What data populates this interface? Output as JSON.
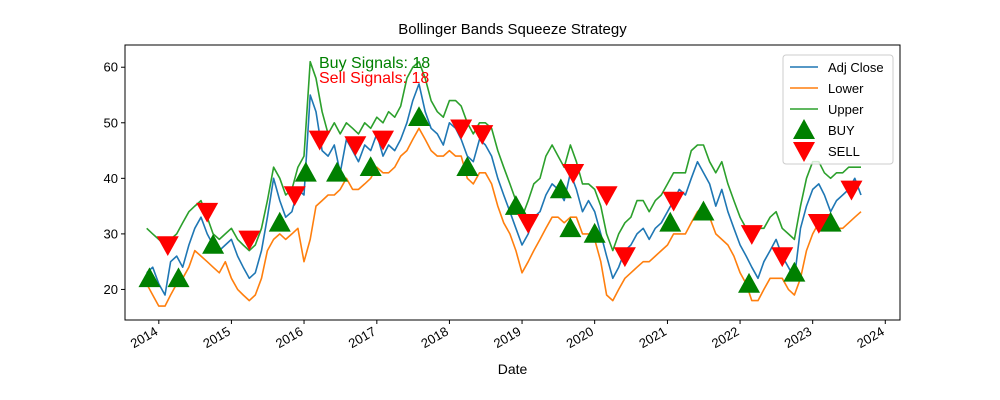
{
  "chart_data": {
    "type": "line",
    "title": "Bollinger Bands Squeeze Strategy",
    "xlabel": "Date",
    "ylabel": "",
    "xlim": [
      "2013-07-15",
      "2024-03-15"
    ],
    "ylim": [
      14.5,
      64
    ],
    "x_ticks": [
      "2014",
      "2015",
      "2016",
      "2017",
      "2018",
      "2019",
      "2020",
      "2021",
      "2022",
      "2023",
      "2024"
    ],
    "y_ticks": [
      20,
      30,
      40,
      50,
      60
    ],
    "grid": false,
    "legend_position": "top-right",
    "annotations": {
      "buy_text": "Buy Signals: 18",
      "sell_text": "Sell Signals: 18",
      "buy_color": "#008000",
      "sell_color": "#ff0000"
    },
    "colors": {
      "adj_close": "#1f77b4",
      "lower": "#ff7f0e",
      "upper": "#2ca02c",
      "buy": "#008000",
      "sell": "#ff0000"
    },
    "series": [
      {
        "name": "Adj Close",
        "x": [
          "2013-11-01",
          "2013-12-01",
          "2014-01-01",
          "2014-02-01",
          "2014-03-01",
          "2014-04-01",
          "2014-05-01",
          "2014-06-01",
          "2014-07-01",
          "2014-08-01",
          "2014-09-01",
          "2014-10-01",
          "2014-11-01",
          "2014-12-01",
          "2015-01-01",
          "2015-02-01",
          "2015-03-01",
          "2015-04-01",
          "2015-05-01",
          "2015-06-01",
          "2015-07-01",
          "2015-08-01",
          "2015-09-01",
          "2015-10-01",
          "2015-11-01",
          "2015-12-01",
          "2016-01-01",
          "2016-02-01",
          "2016-03-01",
          "2016-04-01",
          "2016-05-01",
          "2016-06-01",
          "2016-07-01",
          "2016-08-01",
          "2016-09-01",
          "2016-10-01",
          "2016-11-01",
          "2016-12-01",
          "2017-01-01",
          "2017-02-01",
          "2017-03-01",
          "2017-04-01",
          "2017-05-01",
          "2017-06-01",
          "2017-07-01",
          "2017-08-01",
          "2017-09-01",
          "2017-10-01",
          "2017-11-01",
          "2017-12-01",
          "2018-01-01",
          "2018-02-01",
          "2018-03-01",
          "2018-04-01",
          "2018-05-01",
          "2018-06-01",
          "2018-07-01",
          "2018-08-01",
          "2018-09-01",
          "2018-10-01",
          "2018-11-01",
          "2018-12-01",
          "2019-01-01",
          "2019-02-01",
          "2019-03-01",
          "2019-04-01",
          "2019-05-01",
          "2019-06-01",
          "2019-07-01",
          "2019-08-01",
          "2019-09-01",
          "2019-10-01",
          "2019-11-01",
          "2019-12-01",
          "2020-01-01",
          "2020-02-01",
          "2020-03-01",
          "2020-04-01",
          "2020-05-01",
          "2020-06-01",
          "2020-07-01",
          "2020-08-01",
          "2020-09-01",
          "2020-10-01",
          "2020-11-01",
          "2020-12-01",
          "2021-01-01",
          "2021-02-01",
          "2021-03-01",
          "2021-04-01",
          "2021-05-01",
          "2021-06-01",
          "2021-07-01",
          "2021-08-01",
          "2021-09-01",
          "2021-10-01",
          "2021-11-01",
          "2021-12-01",
          "2022-01-01",
          "2022-02-01",
          "2022-03-01",
          "2022-04-01",
          "2022-05-01",
          "2022-06-01",
          "2022-07-01",
          "2022-08-01",
          "2022-09-01",
          "2022-10-01",
          "2022-11-01",
          "2022-12-01",
          "2023-01-01",
          "2023-02-01",
          "2023-03-01",
          "2023-04-01",
          "2023-05-01",
          "2023-06-01",
          "2023-07-01",
          "2023-08-01",
          "2023-09-01"
        ],
        "values": [
          23,
          24,
          21,
          19,
          25,
          26,
          24,
          28,
          31,
          33,
          30,
          28,
          27,
          28,
          29,
          26,
          24,
          22,
          23,
          27,
          33,
          40,
          36,
          33,
          34,
          38,
          37,
          55,
          52,
          45,
          44,
          46,
          41,
          47,
          45,
          43,
          46,
          45,
          48,
          44,
          46,
          45,
          47,
          50,
          54,
          57,
          52,
          49,
          48,
          46,
          50,
          49,
          47,
          44,
          43,
          47,
          46,
          44,
          40,
          37,
          34,
          31,
          28,
          30,
          33,
          34,
          37,
          39,
          38,
          36,
          41,
          38,
          34,
          36,
          34,
          30,
          26,
          22,
          24,
          27,
          28,
          30,
          31,
          29,
          31,
          32,
          34,
          36,
          38,
          37,
          40,
          43,
          41,
          39,
          35,
          38,
          34,
          31,
          28,
          26,
          24,
          22,
          25,
          27,
          29,
          26,
          24,
          22,
          31,
          35,
          38,
          39,
          37,
          34,
          36,
          37,
          38,
          40,
          37
        ]
      },
      {
        "name": "Lower",
        "x": [
          "2013-11-01",
          "2013-12-01",
          "2014-01-01",
          "2014-02-01",
          "2014-03-01",
          "2014-04-01",
          "2014-05-01",
          "2014-06-01",
          "2014-07-01",
          "2014-08-01",
          "2014-09-01",
          "2014-10-01",
          "2014-11-01",
          "2014-12-01",
          "2015-01-01",
          "2015-02-01",
          "2015-03-01",
          "2015-04-01",
          "2015-05-01",
          "2015-06-01",
          "2015-07-01",
          "2015-08-01",
          "2015-09-01",
          "2015-10-01",
          "2015-11-01",
          "2015-12-01",
          "2016-01-01",
          "2016-02-01",
          "2016-03-01",
          "2016-04-01",
          "2016-05-01",
          "2016-06-01",
          "2016-07-01",
          "2016-08-01",
          "2016-09-01",
          "2016-10-01",
          "2016-11-01",
          "2016-12-01",
          "2017-01-01",
          "2017-02-01",
          "2017-03-01",
          "2017-04-01",
          "2017-05-01",
          "2017-06-01",
          "2017-07-01",
          "2017-08-01",
          "2017-09-01",
          "2017-10-01",
          "2017-11-01",
          "2017-12-01",
          "2018-01-01",
          "2018-02-01",
          "2018-03-01",
          "2018-04-01",
          "2018-05-01",
          "2018-06-01",
          "2018-07-01",
          "2018-08-01",
          "2018-09-01",
          "2018-10-01",
          "2018-11-01",
          "2018-12-01",
          "2019-01-01",
          "2019-02-01",
          "2019-03-01",
          "2019-04-01",
          "2019-05-01",
          "2019-06-01",
          "2019-07-01",
          "2019-08-01",
          "2019-09-01",
          "2019-10-01",
          "2019-11-01",
          "2019-12-01",
          "2020-01-01",
          "2020-02-01",
          "2020-03-01",
          "2020-04-01",
          "2020-05-01",
          "2020-06-01",
          "2020-07-01",
          "2020-08-01",
          "2020-09-01",
          "2020-10-01",
          "2020-11-01",
          "2020-12-01",
          "2021-01-01",
          "2021-02-01",
          "2021-03-01",
          "2021-04-01",
          "2021-05-01",
          "2021-06-01",
          "2021-07-01",
          "2021-08-01",
          "2021-09-01",
          "2021-10-01",
          "2021-11-01",
          "2021-12-01",
          "2022-01-01",
          "2022-02-01",
          "2022-03-01",
          "2022-04-01",
          "2022-05-01",
          "2022-06-01",
          "2022-07-01",
          "2022-08-01",
          "2022-09-01",
          "2022-10-01",
          "2022-11-01",
          "2022-12-01",
          "2023-01-01",
          "2023-02-01",
          "2023-03-01",
          "2023-04-01",
          "2023-05-01",
          "2023-06-01",
          "2023-07-01",
          "2023-08-01",
          "2023-09-01"
        ],
        "values": [
          21,
          19,
          17,
          17,
          19,
          21,
          22,
          24,
          27,
          26,
          25,
          24,
          23,
          25,
          22,
          20,
          19,
          18,
          19,
          22,
          27,
          29,
          30,
          29,
          30,
          31,
          25,
          29,
          35,
          36,
          37,
          37,
          38,
          40,
          38,
          38,
          39,
          40,
          42,
          41,
          41,
          42,
          44,
          45,
          47,
          49,
          47,
          45,
          44,
          44,
          45,
          44,
          44,
          40,
          39,
          41,
          41,
          39,
          35,
          32,
          30,
          27,
          23,
          25,
          27,
          29,
          31,
          33,
          33,
          32,
          33,
          33,
          30,
          30,
          29,
          25,
          19,
          18,
          20,
          22,
          23,
          24,
          25,
          25,
          26,
          27,
          28,
          30,
          30,
          30,
          32,
          34,
          35,
          33,
          30,
          29,
          28,
          26,
          23,
          21,
          18,
          18,
          20,
          22,
          22,
          22,
          20,
          19,
          22,
          27,
          30,
          32,
          33,
          31,
          31,
          31,
          32,
          33,
          34
        ]
      },
      {
        "name": "Upper",
        "x": [
          "2013-11-01",
          "2013-12-01",
          "2014-01-01",
          "2014-02-01",
          "2014-03-01",
          "2014-04-01",
          "2014-05-01",
          "2014-06-01",
          "2014-07-01",
          "2014-08-01",
          "2014-09-01",
          "2014-10-01",
          "2014-11-01",
          "2014-12-01",
          "2015-01-01",
          "2015-02-01",
          "2015-03-01",
          "2015-04-01",
          "2015-05-01",
          "2015-06-01",
          "2015-07-01",
          "2015-08-01",
          "2015-09-01",
          "2015-10-01",
          "2015-11-01",
          "2015-12-01",
          "2016-01-01",
          "2016-02-01",
          "2016-03-01",
          "2016-04-01",
          "2016-05-01",
          "2016-06-01",
          "2016-07-01",
          "2016-08-01",
          "2016-09-01",
          "2016-10-01",
          "2016-11-01",
          "2016-12-01",
          "2017-01-01",
          "2017-02-01",
          "2017-03-01",
          "2017-04-01",
          "2017-05-01",
          "2017-06-01",
          "2017-07-01",
          "2017-08-01",
          "2017-09-01",
          "2017-10-01",
          "2017-11-01",
          "2017-12-01",
          "2018-01-01",
          "2018-02-01",
          "2018-03-01",
          "2018-04-01",
          "2018-05-01",
          "2018-06-01",
          "2018-07-01",
          "2018-08-01",
          "2018-09-01",
          "2018-10-01",
          "2018-11-01",
          "2018-12-01",
          "2019-01-01",
          "2019-02-01",
          "2019-03-01",
          "2019-04-01",
          "2019-05-01",
          "2019-06-01",
          "2019-07-01",
          "2019-08-01",
          "2019-09-01",
          "2019-10-01",
          "2019-11-01",
          "2019-12-01",
          "2020-01-01",
          "2020-02-01",
          "2020-03-01",
          "2020-04-01",
          "2020-05-01",
          "2020-06-01",
          "2020-07-01",
          "2020-08-01",
          "2020-09-01",
          "2020-10-01",
          "2020-11-01",
          "2020-12-01",
          "2021-01-01",
          "2021-02-01",
          "2021-03-01",
          "2021-04-01",
          "2021-05-01",
          "2021-06-01",
          "2021-07-01",
          "2021-08-01",
          "2021-09-01",
          "2021-10-01",
          "2021-11-01",
          "2021-12-01",
          "2022-01-01",
          "2022-02-01",
          "2022-03-01",
          "2022-04-01",
          "2022-05-01",
          "2022-06-01",
          "2022-07-01",
          "2022-08-01",
          "2022-09-01",
          "2022-10-01",
          "2022-11-01",
          "2022-12-01",
          "2023-01-01",
          "2023-02-01",
          "2023-03-01",
          "2023-04-01",
          "2023-05-01",
          "2023-06-01",
          "2023-07-01",
          "2023-08-01",
          "2023-09-01"
        ],
        "values": [
          31,
          30,
          29,
          28,
          29,
          30,
          32,
          34,
          35,
          36,
          33,
          30,
          29,
          30,
          31,
          29,
          28,
          27,
          28,
          31,
          36,
          42,
          40,
          37,
          38,
          42,
          44,
          61,
          58,
          52,
          48,
          50,
          48,
          50,
          49,
          48,
          50,
          49,
          51,
          50,
          52,
          51,
          53,
          58,
          60,
          61,
          58,
          54,
          52,
          51,
          54,
          54,
          53,
          50,
          48,
          50,
          50,
          49,
          45,
          42,
          39,
          36,
          33,
          36,
          39,
          40,
          44,
          46,
          44,
          42,
          46,
          43,
          39,
          39,
          38,
          35,
          30,
          27,
          30,
          32,
          33,
          36,
          36,
          34,
          36,
          37,
          39,
          41,
          41,
          41,
          45,
          46,
          46,
          43,
          41,
          43,
          39,
          36,
          33,
          31,
          29,
          31,
          31,
          33,
          34,
          31,
          30,
          29,
          35,
          40,
          43,
          43,
          41,
          40,
          41,
          41,
          42,
          42,
          42
        ]
      }
    ],
    "buy_signals": [
      {
        "x": "2013-11-15",
        "y": 22
      },
      {
        "x": "2014-04-10",
        "y": 22
      },
      {
        "x": "2014-10-01",
        "y": 28
      },
      {
        "x": "2015-09-01",
        "y": 32
      },
      {
        "x": "2016-01-10",
        "y": 41
      },
      {
        "x": "2016-06-15",
        "y": 41
      },
      {
        "x": "2016-12-01",
        "y": 42
      },
      {
        "x": "2017-08-01",
        "y": 51
      },
      {
        "x": "2018-04-01",
        "y": 42
      },
      {
        "x": "2018-12-01",
        "y": 35
      },
      {
        "x": "2019-07-15",
        "y": 38
      },
      {
        "x": "2019-09-01",
        "y": 31
      },
      {
        "x": "2020-01-01",
        "y": 30
      },
      {
        "x": "2021-01-15",
        "y": 32
      },
      {
        "x": "2021-07-01",
        "y": 34
      },
      {
        "x": "2022-02-15",
        "y": 21
      },
      {
        "x": "2022-10-01",
        "y": 23
      },
      {
        "x": "2023-04-01",
        "y": 32
      }
    ],
    "sell_signals": [
      {
        "x": "2014-02-15",
        "y": 28
      },
      {
        "x": "2014-09-01",
        "y": 34
      },
      {
        "x": "2015-04-01",
        "y": 29
      },
      {
        "x": "2015-11-15",
        "y": 37
      },
      {
        "x": "2016-03-20",
        "y": 47
      },
      {
        "x": "2016-09-15",
        "y": 46
      },
      {
        "x": "2017-02-01",
        "y": 47
      },
      {
        "x": "2018-03-01",
        "y": 49
      },
      {
        "x": "2018-06-15",
        "y": 48
      },
      {
        "x": "2019-02-01",
        "y": 32
      },
      {
        "x": "2019-09-15",
        "y": 41
      },
      {
        "x": "2020-03-01",
        "y": 37
      },
      {
        "x": "2020-06-01",
        "y": 26
      },
      {
        "x": "2021-02-01",
        "y": 36
      },
      {
        "x": "2022-03-01",
        "y": 30
      },
      {
        "x": "2022-08-01",
        "y": 26
      },
      {
        "x": "2023-02-01",
        "y": 32
      },
      {
        "x": "2023-07-15",
        "y": 38
      }
    ],
    "legend": [
      {
        "label": "Adj Close",
        "kind": "line",
        "color": "#1f77b4"
      },
      {
        "label": "Lower",
        "kind": "line",
        "color": "#ff7f0e"
      },
      {
        "label": "Upper",
        "kind": "line",
        "color": "#2ca02c"
      },
      {
        "label": "BUY",
        "kind": "up-triangle",
        "color": "#008000"
      },
      {
        "label": "SELL",
        "kind": "down-triangle",
        "color": "#ff0000"
      }
    ]
  }
}
